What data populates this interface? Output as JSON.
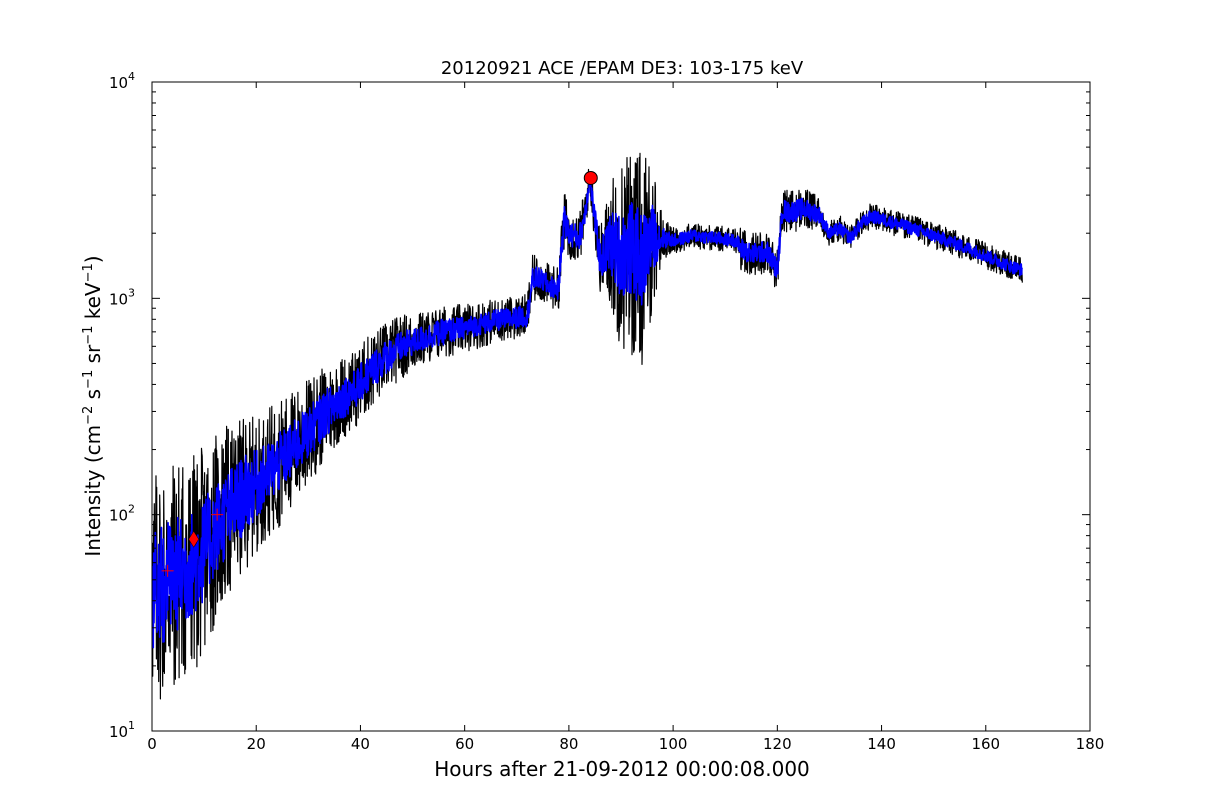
{
  "chart_data": {
    "type": "line",
    "title": "20120921 ACE /EPAM DE3: 103-175 keV",
    "xlabel": "Hours after 21-09-2012 00:00:08.000",
    "ylabel": {
      "prefix": "Intensity (cm",
      "sup1": "−2",
      "mid1": " s",
      "sup2": "−1",
      "mid2": " sr",
      "sup3": "−1",
      "mid3": " keV",
      "sup4": "−1",
      "suffix": ")"
    },
    "xlim": [
      0,
      180
    ],
    "ylim": [
      10,
      10000
    ],
    "yscale": "log",
    "grid": false,
    "x_ticks": [
      0,
      20,
      40,
      60,
      80,
      100,
      120,
      140,
      160,
      180
    ],
    "y_ticks": [
      {
        "base": "10",
        "exp": "1"
      },
      {
        "base": "10",
        "exp": "2"
      },
      {
        "base": "10",
        "exp": "3"
      },
      {
        "base": "10",
        "exp": "4"
      }
    ],
    "series": [
      {
        "color": "#000000",
        "x": [
          0,
          3,
          6,
          9,
          12,
          15,
          18,
          21,
          24,
          27,
          30,
          33,
          36,
          39,
          42,
          45,
          48,
          51,
          54,
          57,
          60,
          63,
          66,
          69,
          72,
          73,
          74,
          76,
          78,
          79,
          80,
          82,
          83,
          84,
          85,
          86,
          88,
          90,
          92,
          94,
          96,
          98,
          100,
          104,
          108,
          112,
          113,
          115,
          118,
          120,
          121,
          122,
          125,
          128,
          130,
          132,
          134,
          136,
          138,
          142,
          146,
          150,
          154,
          158,
          162,
          165,
          167
        ],
        "y": [
          45,
          50,
          55,
          62,
          85,
          105,
          125,
          145,
          170,
          200,
          240,
          290,
          340,
          380,
          460,
          540,
          600,
          640,
          680,
          710,
          730,
          760,
          790,
          810,
          830,
          1200,
          1250,
          1150,
          1100,
          2300,
          2000,
          1900,
          2400,
          3600,
          2300,
          1500,
          1800,
          1600,
          1700,
          1500,
          1900,
          1900,
          1850,
          1950,
          1900,
          1850,
          1700,
          1600,
          1650,
          1350,
          2600,
          2500,
          2600,
          2450,
          2000,
          2100,
          1900,
          2200,
          2400,
          2250,
          2100,
          1950,
          1800,
          1650,
          1500,
          1400,
          1350
        ],
        "spread": [
          0.55,
          0.55,
          0.55,
          0.5,
          0.45,
          0.4,
          0.35,
          0.3,
          0.3,
          0.28,
          0.25,
          0.22,
          0.2,
          0.18,
          0.18,
          0.16,
          0.15,
          0.13,
          0.12,
          0.12,
          0.11,
          0.11,
          0.1,
          0.1,
          0.1,
          0.12,
          0.1,
          0.1,
          0.1,
          0.15,
          0.12,
          0.12,
          0.12,
          0.08,
          0.12,
          0.15,
          0.3,
          0.45,
          0.5,
          0.5,
          0.35,
          0.1,
          0.06,
          0.06,
          0.06,
          0.06,
          0.1,
          0.1,
          0.1,
          0.1,
          0.1,
          0.1,
          0.1,
          0.08,
          0.06,
          0.06,
          0.06,
          0.06,
          0.06,
          0.06,
          0.06,
          0.06,
          0.06,
          0.06,
          0.06,
          0.06,
          0.06
        ]
      },
      {
        "color": "#0000ff",
        "x": [
          0,
          3,
          6,
          9,
          12,
          15,
          18,
          21,
          24,
          27,
          30,
          33,
          36,
          39,
          42,
          45,
          48,
          51,
          54,
          57,
          60,
          63,
          66,
          69,
          72,
          73,
          74,
          76,
          78,
          79,
          80,
          82,
          83,
          84,
          85,
          86,
          88,
          90,
          92,
          94,
          96,
          98,
          100,
          104,
          108,
          112,
          113,
          115,
          118,
          120,
          121,
          122,
          125,
          128,
          130,
          132,
          134,
          136,
          138,
          142,
          146,
          150,
          154,
          158,
          162,
          165,
          167
        ],
        "y": [
          45,
          50,
          55,
          62,
          85,
          105,
          125,
          145,
          170,
          200,
          240,
          290,
          340,
          380,
          460,
          540,
          600,
          640,
          680,
          710,
          730,
          760,
          790,
          810,
          830,
          1200,
          1250,
          1150,
          1100,
          2300,
          2000,
          1900,
          2400,
          3600,
          2300,
          1500,
          1800,
          1600,
          1700,
          1500,
          1900,
          1900,
          1850,
          1950,
          1900,
          1850,
          1700,
          1600,
          1650,
          1350,
          2600,
          2500,
          2600,
          2450,
          2000,
          2100,
          1900,
          2200,
          2400,
          2250,
          2100,
          1950,
          1800,
          1650,
          1500,
          1400,
          1350
        ],
        "spread": [
          0.28,
          0.28,
          0.26,
          0.24,
          0.22,
          0.2,
          0.18,
          0.15,
          0.14,
          0.13,
          0.12,
          0.11,
          0.1,
          0.09,
          0.09,
          0.08,
          0.07,
          0.06,
          0.06,
          0.06,
          0.05,
          0.05,
          0.05,
          0.05,
          0.05,
          0.06,
          0.05,
          0.05,
          0.05,
          0.08,
          0.06,
          0.06,
          0.06,
          0.04,
          0.06,
          0.08,
          0.15,
          0.2,
          0.22,
          0.22,
          0.16,
          0.05,
          0.03,
          0.03,
          0.03,
          0.03,
          0.05,
          0.05,
          0.05,
          0.05,
          0.05,
          0.05,
          0.05,
          0.04,
          0.03,
          0.03,
          0.03,
          0.03,
          0.03,
          0.03,
          0.03,
          0.03,
          0.03,
          0.03,
          0.03,
          0.03,
          0.03
        ]
      }
    ],
    "markers": [
      {
        "shape": "plus",
        "x": 3,
        "y": 55,
        "color": "#ff0000"
      },
      {
        "shape": "diamond",
        "x": 8,
        "y": 77,
        "color": "#ff0000"
      },
      {
        "shape": "plus",
        "x": 12.5,
        "y": 100,
        "color": "#ff0000"
      },
      {
        "shape": "circle",
        "x": 84.2,
        "y": 3600,
        "color": "#ff0000"
      }
    ]
  }
}
